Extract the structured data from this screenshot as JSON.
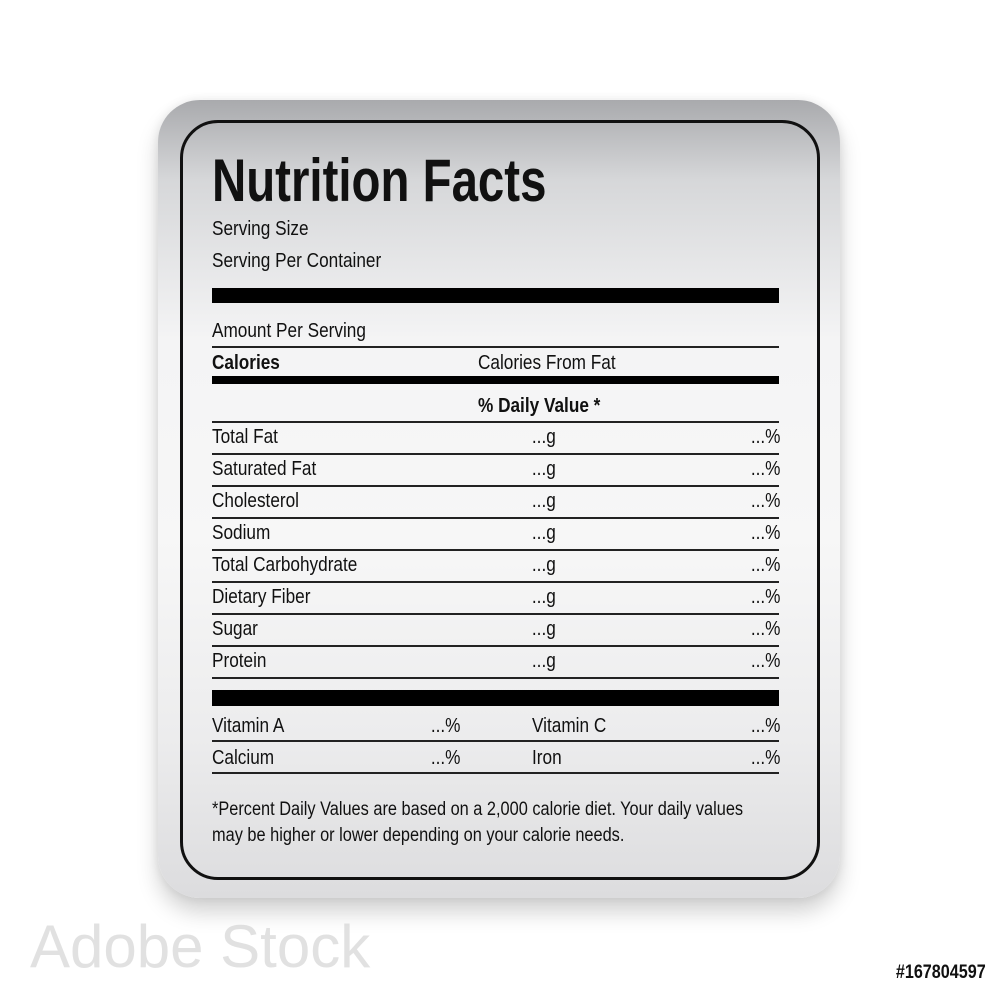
{
  "label": {
    "title": "Nutrition Facts",
    "serving_size": "Serving Size",
    "serving_per_container": "Serving Per Container",
    "amount_per_serving": "Amount Per Serving",
    "calories": "Calories",
    "calories_from_fat": "Calories From Fat",
    "daily_value_header": "% Daily Value *",
    "nutrients": [
      {
        "name": "Total Fat",
        "amount": "...g",
        "percent": "...%"
      },
      {
        "name": "Saturated Fat",
        "amount": "...g",
        "percent": "...%"
      },
      {
        "name": "Cholesterol",
        "amount": "...g",
        "percent": "...%"
      },
      {
        "name": "Sodium",
        "amount": "...g",
        "percent": "...%"
      },
      {
        "name": "Total Carbohydrate",
        "amount": "...g",
        "percent": "...%"
      },
      {
        "name": "Dietary Fiber",
        "amount": "...g",
        "percent": "...%"
      },
      {
        "name": "Sugar",
        "amount": "...g",
        "percent": "...%"
      },
      {
        "name": "Protein",
        "amount": "...g",
        "percent": "...%"
      }
    ],
    "vitamins": [
      {
        "name": "Vitamin A",
        "percent": "...%"
      },
      {
        "name": "Vitamin C",
        "percent": "...%"
      },
      {
        "name": "Calcium",
        "percent": "...%"
      },
      {
        "name": "Iron",
        "percent": "...%"
      }
    ],
    "footnote_line1": "*Percent Daily Values are based on a 2,000 calorie diet. Your daily values",
    "footnote_line2": "may be higher or lower depending on your calorie needs."
  },
  "watermark": "Adobe Stock",
  "image_id": "#167804597"
}
